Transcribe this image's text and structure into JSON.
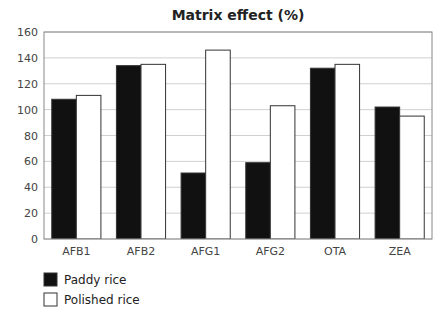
{
  "chart_data": {
    "type": "bar",
    "title": "Matrix effect (%)",
    "categories": [
      "AFB1",
      "AFB2",
      "AFG1",
      "AFG2",
      "OTA",
      "ZEA"
    ],
    "series": [
      {
        "name": "Paddy rice",
        "color": "#111111",
        "values": [
          108,
          134,
          51,
          59,
          132,
          102
        ]
      },
      {
        "name": "Polished rice",
        "color": "#ffffff",
        "values": [
          111,
          135,
          146,
          103,
          135,
          95
        ]
      }
    ],
    "ylim": [
      0,
      160
    ],
    "yticks": [
      0,
      20,
      40,
      60,
      80,
      100,
      120,
      140,
      160
    ],
    "grid": true,
    "legend": "lower left"
  }
}
